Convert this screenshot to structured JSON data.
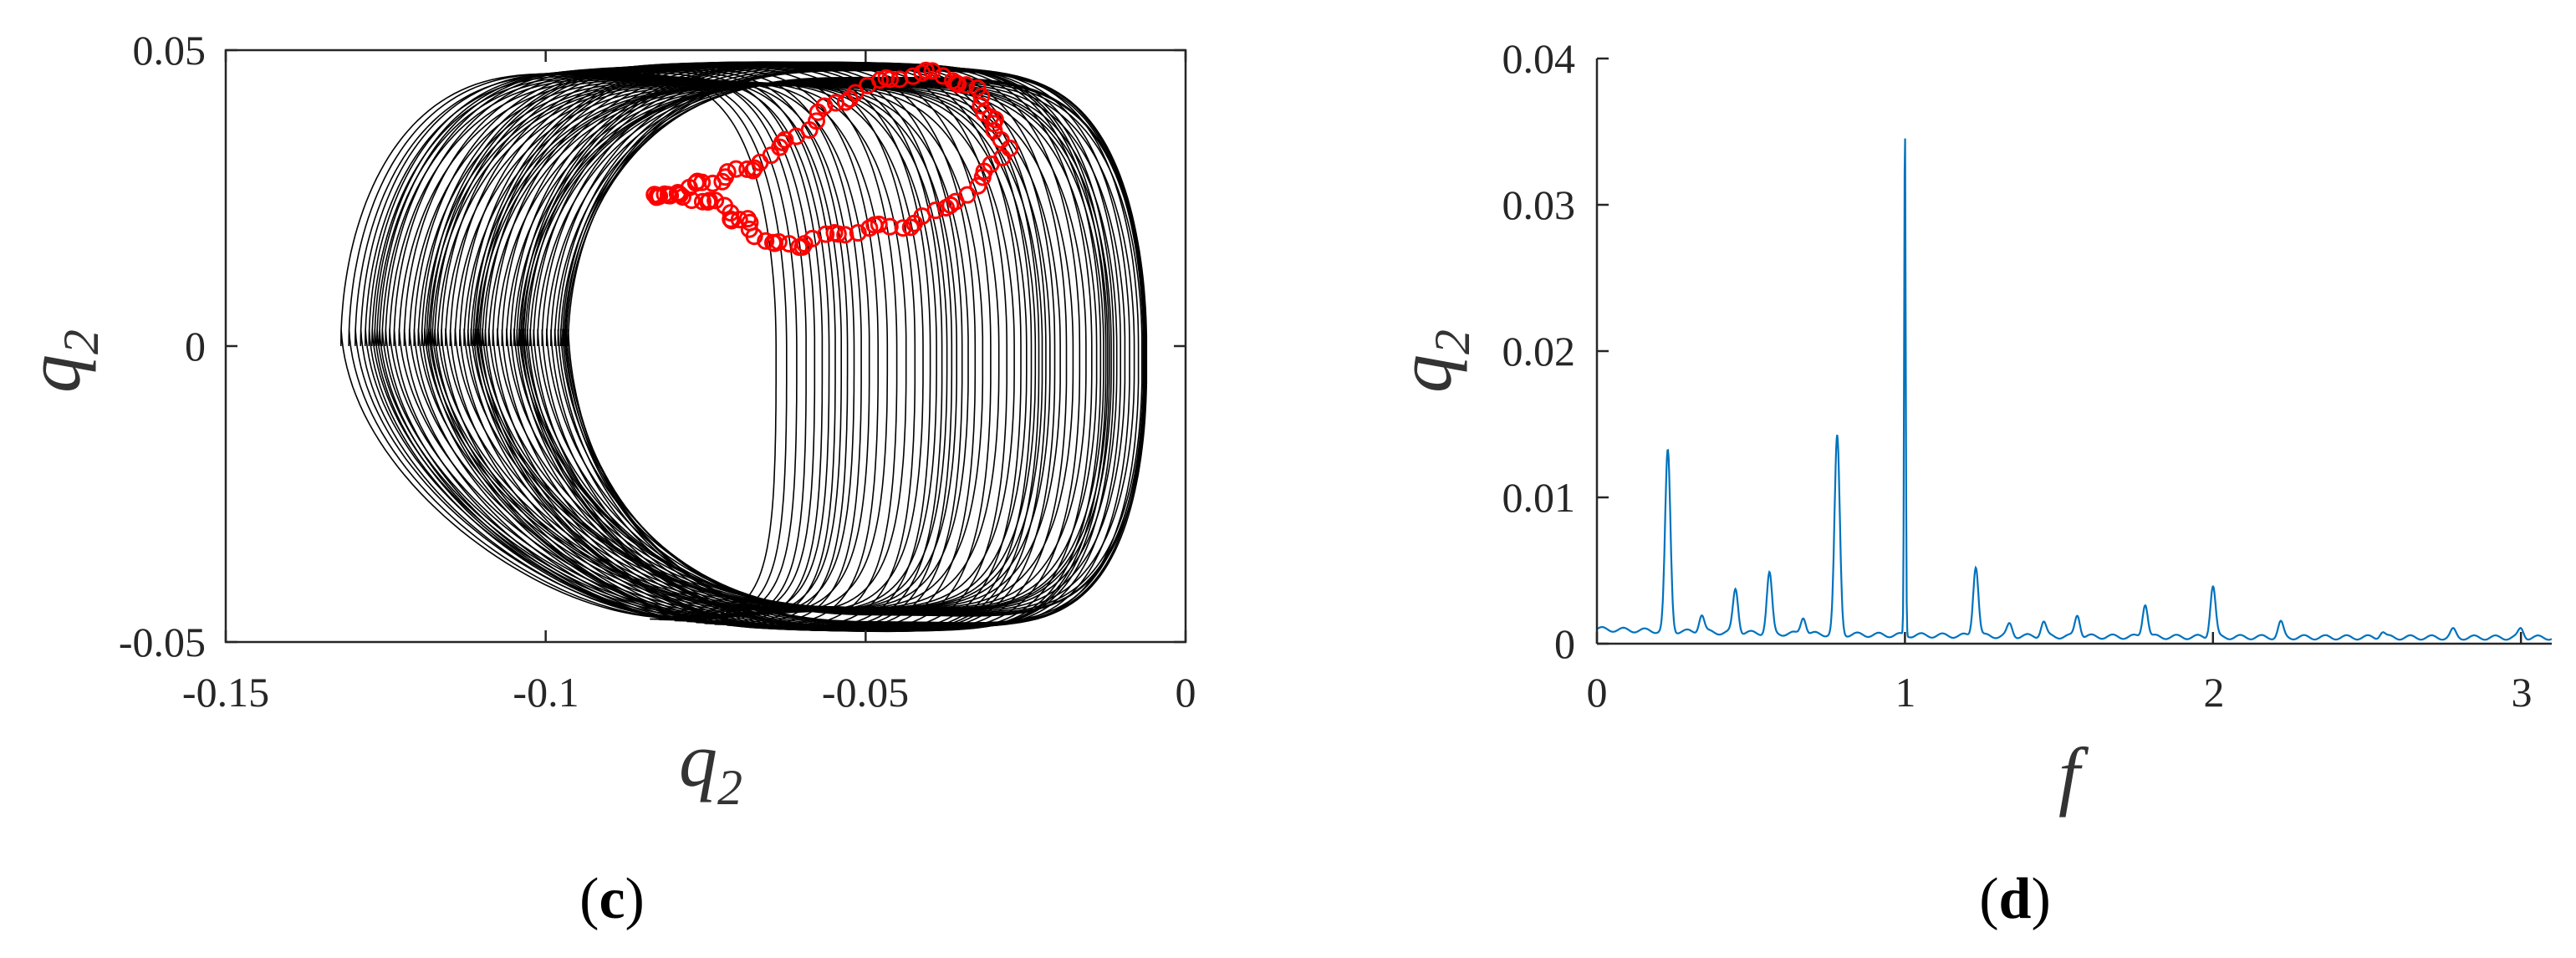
{
  "panels": [
    {
      "caption": {
        "open": "(",
        "letter": "c",
        "close": ")"
      },
      "xlabel": {
        "base": "q",
        "sub": "2"
      },
      "ylabel": {
        "base": "q",
        "sub": "2"
      },
      "xticks": [
        "-0.15",
        "-0.1",
        "-0.05",
        "0"
      ],
      "yticks": [
        "0.05",
        "0",
        "-0.05"
      ]
    },
    {
      "caption": {
        "open": "(",
        "letter": "d",
        "close": ")"
      },
      "xlabel": {
        "base": "f"
      },
      "ylabel": {
        "base": "q",
        "sub": "2"
      },
      "xticks": [
        "0",
        "1",
        "2",
        "3"
      ],
      "yticks": [
        "0.04",
        "0.03",
        "0.02",
        "0.01",
        "0"
      ]
    }
  ],
  "chart_data": [
    {
      "type": "line",
      "subtype": "phase-portrait-with-poincare-section",
      "xlim": [
        -0.15,
        0
      ],
      "ylim": [
        -0.05,
        0.05
      ],
      "grid": false,
      "colors": {
        "trajectory": "#000000",
        "poincare_points": "#ff0000"
      },
      "trajectory_envelope": {
        "x_range": [
          -0.132,
          -0.006
        ],
        "y_range": [
          -0.05,
          0.048
        ],
        "inner_boundary_x_at_y0": -0.097
      },
      "poincare_points": {
        "marker": "circle",
        "x": [
          -0.083,
          -0.08,
          -0.077,
          -0.074,
          -0.071,
          -0.068,
          -0.065,
          -0.062,
          -0.058,
          -0.055,
          -0.051,
          -0.047,
          -0.043,
          -0.039,
          -0.036,
          -0.033,
          -0.031,
          -0.03,
          -0.028,
          -0.031,
          -0.034,
          -0.038,
          -0.042,
          -0.046,
          -0.05,
          -0.054,
          -0.058,
          -0.061,
          -0.064,
          -0.067,
          -0.069,
          -0.071,
          -0.073,
          -0.076,
          -0.079,
          -0.082
        ],
        "y": [
          0.025,
          0.026,
          0.027,
          0.028,
          0.029,
          0.03,
          0.032,
          0.035,
          0.038,
          0.041,
          0.043,
          0.045,
          0.046,
          0.046,
          0.045,
          0.043,
          0.04,
          0.037,
          0.034,
          0.029,
          0.026,
          0.023,
          0.021,
          0.02,
          0.02,
          0.019,
          0.018,
          0.017,
          0.017,
          0.019,
          0.021,
          0.022,
          0.024,
          0.025,
          0.025,
          0.026
        ]
      }
    },
    {
      "type": "line",
      "subtype": "frequency-spectrum",
      "xlim": [
        0,
        3.1
      ],
      "ylim": [
        0,
        0.04
      ],
      "grid": false,
      "colors": {
        "series": "#0072bd"
      },
      "baseline": 0.0004,
      "peaks": [
        {
          "f": 0.23,
          "amp": 0.0123
        },
        {
          "f": 0.34,
          "amp": 0.0012
        },
        {
          "f": 0.45,
          "amp": 0.003
        },
        {
          "f": 0.56,
          "amp": 0.0041
        },
        {
          "f": 0.67,
          "amp": 0.0012
        },
        {
          "f": 0.78,
          "amp": 0.0135
        },
        {
          "f": 1.0,
          "amp": 0.035
        },
        {
          "f": 1.23,
          "amp": 0.0048
        },
        {
          "f": 1.34,
          "amp": 0.0008
        },
        {
          "f": 1.45,
          "amp": 0.001
        },
        {
          "f": 1.56,
          "amp": 0.0015
        },
        {
          "f": 1.78,
          "amp": 0.0023
        },
        {
          "f": 2.0,
          "amp": 0.0035
        },
        {
          "f": 2.22,
          "amp": 0.001
        },
        {
          "f": 2.55,
          "amp": 0.0004
        },
        {
          "f": 2.78,
          "amp": 0.0005
        },
        {
          "f": 3.0,
          "amp": 0.0006
        }
      ]
    }
  ]
}
